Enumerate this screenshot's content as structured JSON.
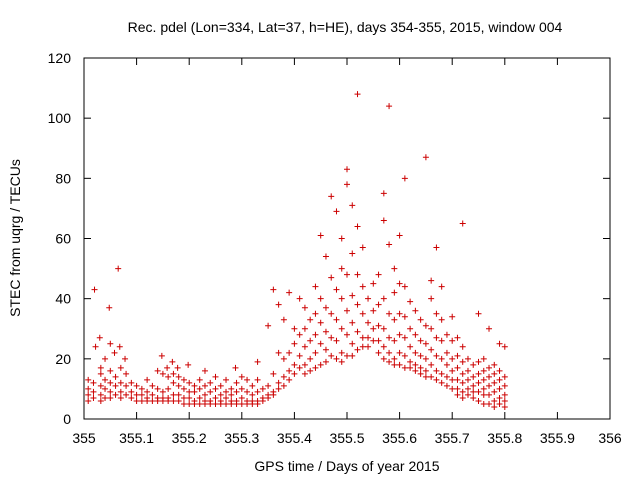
{
  "chart_data": {
    "type": "scatter",
    "title": "Rec. pdel (Lon=334, Lat=37, h=HE), days 354-355, 2015, window 004",
    "xlabel": "GPS time / Days of year 2015",
    "ylabel": "STEC from uqrg / TECUs",
    "xlim": [
      355,
      356
    ],
    "ylim": [
      0,
      120
    ],
    "xticks": [
      355,
      355.1,
      355.2,
      355.3,
      355.4,
      355.5,
      355.6,
      355.7,
      355.8,
      355.9,
      356
    ],
    "xtick_labels": [
      "355",
      "355.1",
      "355.2",
      "355.3",
      "355.4",
      "355.5",
      "355.6",
      "355.7",
      "355.8",
      "355.9",
      "356"
    ],
    "yticks": [
      0,
      20,
      40,
      60,
      80,
      100,
      120
    ],
    "ytick_labels": [
      "0",
      "20",
      "40",
      "60",
      "80",
      "100",
      "120"
    ],
    "grid": false,
    "marker": "+",
    "marker_color": "#cc0000",
    "points": [
      [
        355.008,
        13
      ],
      [
        355.008,
        10
      ],
      [
        355.008,
        8
      ],
      [
        355.008,
        6
      ],
      [
        355.018,
        12
      ],
      [
        355.018,
        9
      ],
      [
        355.018,
        7
      ],
      [
        355.02,
        43
      ],
      [
        355.022,
        24
      ],
      [
        355.03,
        27
      ],
      [
        355.032,
        17
      ],
      [
        355.032,
        15
      ],
      [
        355.032,
        11
      ],
      [
        355.032,
        8
      ],
      [
        355.032,
        6
      ],
      [
        355.04,
        20
      ],
      [
        355.04,
        13
      ],
      [
        355.04,
        10
      ],
      [
        355.04,
        7
      ],
      [
        355.048,
        37
      ],
      [
        355.05,
        25
      ],
      [
        355.05,
        16
      ],
      [
        355.05,
        12
      ],
      [
        355.05,
        9
      ],
      [
        355.05,
        7
      ],
      [
        355.058,
        22
      ],
      [
        355.06,
        14
      ],
      [
        355.06,
        11
      ],
      [
        355.06,
        8
      ],
      [
        355.065,
        50
      ],
      [
        355.068,
        24
      ],
      [
        355.07,
        17
      ],
      [
        355.07,
        12
      ],
      [
        355.07,
        9
      ],
      [
        355.07,
        7
      ],
      [
        355.078,
        20
      ],
      [
        355.08,
        15
      ],
      [
        355.08,
        11
      ],
      [
        355.08,
        8
      ],
      [
        355.09,
        12
      ],
      [
        355.09,
        9
      ],
      [
        355.09,
        7
      ],
      [
        355.1,
        11
      ],
      [
        355.1,
        8
      ],
      [
        355.1,
        6
      ],
      [
        355.11,
        10
      ],
      [
        355.11,
        8
      ],
      [
        355.11,
        6
      ],
      [
        355.12,
        13
      ],
      [
        355.12,
        9
      ],
      [
        355.12,
        7
      ],
      [
        355.12,
        6
      ],
      [
        355.13,
        11
      ],
      [
        355.13,
        8
      ],
      [
        355.13,
        6
      ],
      [
        355.14,
        16
      ],
      [
        355.14,
        10
      ],
      [
        355.14,
        7
      ],
      [
        355.14,
        6
      ],
      [
        355.148,
        21
      ],
      [
        355.15,
        15
      ],
      [
        355.15,
        9
      ],
      [
        355.15,
        7
      ],
      [
        355.15,
        6
      ],
      [
        355.158,
        17
      ],
      [
        355.16,
        14
      ],
      [
        355.16,
        10
      ],
      [
        355.16,
        7
      ],
      [
        355.16,
        6
      ],
      [
        355.168,
        19
      ],
      [
        355.17,
        15
      ],
      [
        355.17,
        12
      ],
      [
        355.17,
        8
      ],
      [
        355.17,
        6
      ],
      [
        355.178,
        17
      ],
      [
        355.18,
        14
      ],
      [
        355.18,
        11
      ],
      [
        355.18,
        8
      ],
      [
        355.18,
        6
      ],
      [
        355.19,
        13
      ],
      [
        355.19,
        10
      ],
      [
        355.19,
        7
      ],
      [
        355.19,
        5
      ],
      [
        355.198,
        18
      ],
      [
        355.2,
        12
      ],
      [
        355.2,
        9
      ],
      [
        355.2,
        7
      ],
      [
        355.2,
        5
      ],
      [
        355.21,
        11
      ],
      [
        355.21,
        9
      ],
      [
        355.21,
        6
      ],
      [
        355.21,
        5
      ],
      [
        355.22,
        13
      ],
      [
        355.22,
        10
      ],
      [
        355.22,
        7
      ],
      [
        355.22,
        5
      ],
      [
        355.23,
        16
      ],
      [
        355.23,
        11
      ],
      [
        355.23,
        8
      ],
      [
        355.23,
        6
      ],
      [
        355.23,
        5
      ],
      [
        355.24,
        12
      ],
      [
        355.24,
        9
      ],
      [
        355.24,
        6
      ],
      [
        355.24,
        5
      ],
      [
        355.25,
        14
      ],
      [
        355.25,
        10
      ],
      [
        355.25,
        7
      ],
      [
        355.25,
        5
      ],
      [
        355.26,
        11
      ],
      [
        355.26,
        8
      ],
      [
        355.26,
        6
      ],
      [
        355.26,
        5
      ],
      [
        355.27,
        13
      ],
      [
        355.27,
        9
      ],
      [
        355.27,
        7
      ],
      [
        355.27,
        5
      ],
      [
        355.28,
        10
      ],
      [
        355.28,
        8
      ],
      [
        355.28,
        6
      ],
      [
        355.28,
        5
      ],
      [
        355.288,
        17
      ],
      [
        355.29,
        12
      ],
      [
        355.29,
        9
      ],
      [
        355.29,
        6
      ],
      [
        355.29,
        5
      ],
      [
        355.3,
        14
      ],
      [
        355.3,
        10
      ],
      [
        355.3,
        7
      ],
      [
        355.3,
        5
      ],
      [
        355.31,
        13
      ],
      [
        355.31,
        9
      ],
      [
        355.31,
        6
      ],
      [
        355.31,
        5
      ],
      [
        355.32,
        11
      ],
      [
        355.32,
        8
      ],
      [
        355.32,
        6
      ],
      [
        355.32,
        5
      ],
      [
        355.33,
        19
      ],
      [
        355.33,
        13
      ],
      [
        355.33,
        9
      ],
      [
        355.33,
        6
      ],
      [
        355.33,
        5
      ],
      [
        355.34,
        10
      ],
      [
        355.34,
        7
      ],
      [
        355.34,
        6
      ],
      [
        355.35,
        31
      ],
      [
        355.35,
        11
      ],
      [
        355.35,
        8
      ],
      [
        355.35,
        7
      ],
      [
        355.36,
        43
      ],
      [
        355.36,
        15
      ],
      [
        355.36,
        9
      ],
      [
        355.36,
        8
      ],
      [
        355.37,
        38
      ],
      [
        355.37,
        22
      ],
      [
        355.37,
        12
      ],
      [
        355.37,
        10
      ],
      [
        355.38,
        33
      ],
      [
        355.38,
        20
      ],
      [
        355.38,
        14
      ],
      [
        355.38,
        11
      ],
      [
        355.39,
        42
      ],
      [
        355.39,
        22
      ],
      [
        355.39,
        16
      ],
      [
        355.39,
        13
      ],
      [
        355.4,
        30
      ],
      [
        355.4,
        25
      ],
      [
        355.4,
        18
      ],
      [
        355.4,
        15
      ],
      [
        355.41,
        40
      ],
      [
        355.41,
        28
      ],
      [
        355.41,
        21
      ],
      [
        355.41,
        17
      ],
      [
        355.42,
        37
      ],
      [
        355.42,
        30
      ],
      [
        355.42,
        24
      ],
      [
        355.42,
        18
      ],
      [
        355.42,
        15
      ],
      [
        355.43,
        33
      ],
      [
        355.43,
        26
      ],
      [
        355.43,
        20
      ],
      [
        355.43,
        16
      ],
      [
        355.44,
        44
      ],
      [
        355.44,
        35
      ],
      [
        355.44,
        28
      ],
      [
        355.44,
        22
      ],
      [
        355.44,
        17
      ],
      [
        355.45,
        61
      ],
      [
        355.45,
        40
      ],
      [
        355.45,
        32
      ],
      [
        355.45,
        25
      ],
      [
        355.45,
        18
      ],
      [
        355.46,
        54
      ],
      [
        355.46,
        37
      ],
      [
        355.46,
        29
      ],
      [
        355.46,
        23
      ],
      [
        355.46,
        19
      ],
      [
        355.47,
        74
      ],
      [
        355.47,
        47
      ],
      [
        355.47,
        35
      ],
      [
        355.47,
        27
      ],
      [
        355.47,
        21
      ],
      [
        355.48,
        69
      ],
      [
        355.48,
        43
      ],
      [
        355.48,
        33
      ],
      [
        355.48,
        26
      ],
      [
        355.48,
        20
      ],
      [
        355.49,
        60
      ],
      [
        355.49,
        50
      ],
      [
        355.49,
        40
      ],
      [
        355.49,
        30
      ],
      [
        355.49,
        22
      ],
      [
        355.49,
        19
      ],
      [
        355.5,
        83
      ],
      [
        355.5,
        78
      ],
      [
        355.5,
        48
      ],
      [
        355.5,
        36
      ],
      [
        355.5,
        28
      ],
      [
        355.5,
        21
      ],
      [
        355.51,
        71
      ],
      [
        355.51,
        55
      ],
      [
        355.51,
        41
      ],
      [
        355.51,
        32
      ],
      [
        355.51,
        25
      ],
      [
        355.51,
        21
      ],
      [
        355.52,
        108
      ],
      [
        355.52,
        64
      ],
      [
        355.52,
        48
      ],
      [
        355.52,
        38
      ],
      [
        355.52,
        29
      ],
      [
        355.52,
        23
      ],
      [
        355.53,
        57
      ],
      [
        355.53,
        44
      ],
      [
        355.53,
        35
      ],
      [
        355.53,
        27
      ],
      [
        355.53,
        24
      ],
      [
        355.54,
        40
      ],
      [
        355.54,
        32
      ],
      [
        355.54,
        27
      ],
      [
        355.54,
        24
      ],
      [
        355.55,
        45
      ],
      [
        355.55,
        36
      ],
      [
        355.55,
        30
      ],
      [
        355.55,
        26
      ],
      [
        355.56,
        48
      ],
      [
        355.56,
        38
      ],
      [
        355.56,
        31
      ],
      [
        355.56,
        26
      ],
      [
        355.56,
        22
      ],
      [
        355.57,
        75
      ],
      [
        355.57,
        66
      ],
      [
        355.57,
        40
      ],
      [
        355.57,
        30
      ],
      [
        355.57,
        24
      ],
      [
        355.57,
        20
      ],
      [
        355.58,
        104
      ],
      [
        355.58,
        58
      ],
      [
        355.58,
        35
      ],
      [
        355.58,
        27
      ],
      [
        355.58,
        22
      ],
      [
        355.58,
        19
      ],
      [
        355.59,
        50
      ],
      [
        355.59,
        42
      ],
      [
        355.59,
        33
      ],
      [
        355.59,
        26
      ],
      [
        355.59,
        20
      ],
      [
        355.59,
        18
      ],
      [
        355.6,
        61
      ],
      [
        355.6,
        45
      ],
      [
        355.6,
        35
      ],
      [
        355.6,
        28
      ],
      [
        355.6,
        22
      ],
      [
        355.6,
        18
      ],
      [
        355.61,
        80
      ],
      [
        355.61,
        44
      ],
      [
        355.61,
        34
      ],
      [
        355.61,
        27
      ],
      [
        355.61,
        21
      ],
      [
        355.61,
        17
      ],
      [
        355.62,
        39
      ],
      [
        355.62,
        30
      ],
      [
        355.62,
        24
      ],
      [
        355.62,
        19
      ],
      [
        355.62,
        17
      ],
      [
        355.63,
        36
      ],
      [
        355.63,
        28
      ],
      [
        355.63,
        22
      ],
      [
        355.63,
        18
      ],
      [
        355.63,
        16
      ],
      [
        355.64,
        33
      ],
      [
        355.64,
        26
      ],
      [
        355.64,
        21
      ],
      [
        355.64,
        17
      ],
      [
        355.64,
        15
      ],
      [
        355.65,
        87
      ],
      [
        355.65,
        31
      ],
      [
        355.65,
        25
      ],
      [
        355.65,
        20
      ],
      [
        355.65,
        16
      ],
      [
        355.65,
        14
      ],
      [
        355.66,
        46
      ],
      [
        355.66,
        40
      ],
      [
        355.66,
        30
      ],
      [
        355.66,
        23
      ],
      [
        355.66,
        18
      ],
      [
        355.66,
        14
      ],
      [
        355.67,
        57
      ],
      [
        355.67,
        35
      ],
      [
        355.67,
        27
      ],
      [
        355.67,
        21
      ],
      [
        355.67,
        16
      ],
      [
        355.67,
        13
      ],
      [
        355.68,
        44
      ],
      [
        355.68,
        33
      ],
      [
        355.68,
        26
      ],
      [
        355.68,
        20
      ],
      [
        355.68,
        15
      ],
      [
        355.68,
        12
      ],
      [
        355.69,
        28
      ],
      [
        355.69,
        22
      ],
      [
        355.69,
        18
      ],
      [
        355.69,
        14
      ],
      [
        355.69,
        11
      ],
      [
        355.7,
        34
      ],
      [
        355.7,
        26
      ],
      [
        355.7,
        20
      ],
      [
        355.7,
        16
      ],
      [
        355.7,
        13
      ],
      [
        355.7,
        10
      ],
      [
        355.71,
        27
      ],
      [
        355.71,
        21
      ],
      [
        355.71,
        17
      ],
      [
        355.71,
        13
      ],
      [
        355.71,
        10
      ],
      [
        355.71,
        8
      ],
      [
        355.72,
        65
      ],
      [
        355.72,
        24
      ],
      [
        355.72,
        19
      ],
      [
        355.72,
        15
      ],
      [
        355.72,
        12
      ],
      [
        355.72,
        9
      ],
      [
        355.72,
        7
      ],
      [
        355.73,
        20
      ],
      [
        355.73,
        16
      ],
      [
        355.73,
        13
      ],
      [
        355.73,
        10
      ],
      [
        355.73,
        8
      ],
      [
        355.74,
        18
      ],
      [
        355.74,
        14
      ],
      [
        355.74,
        11
      ],
      [
        355.74,
        9
      ],
      [
        355.74,
        7
      ],
      [
        355.75,
        35
      ],
      [
        355.75,
        19
      ],
      [
        355.75,
        15
      ],
      [
        355.75,
        12
      ],
      [
        355.75,
        9
      ],
      [
        355.75,
        6
      ],
      [
        355.76,
        20
      ],
      [
        355.76,
        16
      ],
      [
        355.76,
        13
      ],
      [
        355.76,
        10
      ],
      [
        355.76,
        8
      ],
      [
        355.76,
        5
      ],
      [
        355.77,
        30
      ],
      [
        355.77,
        17
      ],
      [
        355.77,
        14
      ],
      [
        355.77,
        11
      ],
      [
        355.77,
        8
      ],
      [
        355.77,
        5
      ],
      [
        355.78,
        18
      ],
      [
        355.78,
        15
      ],
      [
        355.78,
        12
      ],
      [
        355.78,
        9
      ],
      [
        355.78,
        6
      ],
      [
        355.78,
        4
      ],
      [
        355.79,
        25
      ],
      [
        355.79,
        16
      ],
      [
        355.79,
        13
      ],
      [
        355.79,
        10
      ],
      [
        355.79,
        7
      ],
      [
        355.79,
        5
      ],
      [
        355.8,
        24
      ],
      [
        355.8,
        14
      ],
      [
        355.8,
        11
      ],
      [
        355.8,
        8
      ],
      [
        355.8,
        6
      ],
      [
        355.8,
        4
      ]
    ]
  }
}
